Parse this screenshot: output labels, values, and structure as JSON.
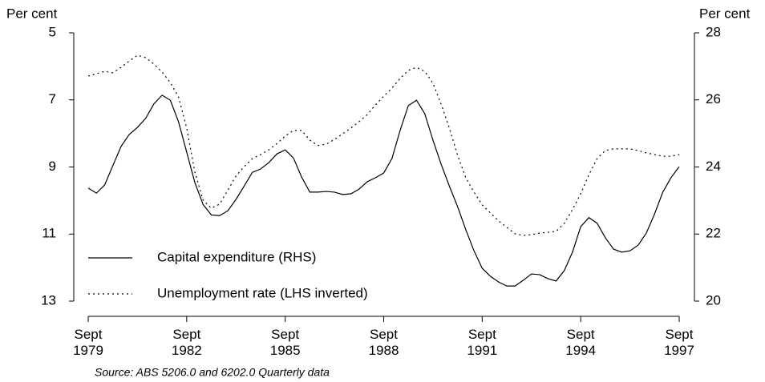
{
  "chart_data": {
    "type": "line",
    "ylabel": "Per cent",
    "y2label": "Per cent",
    "source": "Source: ABS 5206.0 and 6202.0 Quarterly data",
    "categories": [
      "Sept 1979",
      null,
      null,
      null,
      null,
      null,
      null,
      null,
      null,
      null,
      null,
      null,
      "Sept 1982",
      null,
      null,
      null,
      null,
      null,
      null,
      null,
      null,
      null,
      null,
      null,
      "Sept 1985",
      null,
      null,
      null,
      null,
      null,
      null,
      null,
      null,
      null,
      null,
      null,
      "Sept 1988",
      null,
      null,
      null,
      null,
      null,
      null,
      null,
      null,
      null,
      null,
      null,
      "Sept 1991",
      null,
      null,
      null,
      null,
      null,
      null,
      null,
      null,
      null,
      null,
      null,
      "Sept 1994",
      null,
      null,
      null,
      null,
      null,
      null,
      null,
      null,
      null,
      null,
      null,
      "Sept 1997"
    ],
    "ylim": [
      5,
      13
    ],
    "yinverted": true,
    "yticks": [
      5,
      7,
      9,
      11,
      13
    ],
    "y2lim": [
      20,
      28
    ],
    "y2ticks": [
      20,
      22,
      24,
      26,
      28
    ],
    "series": [
      {
        "name": "Capital expenditure (RHS)",
        "color": "#000000",
        "style": "solid",
        "axis": "y2",
        "values": [
          23.37,
          23.22,
          23.46,
          24.04,
          24.61,
          24.97,
          25.18,
          25.45,
          25.88,
          26.14,
          25.99,
          25.35,
          24.44,
          23.53,
          22.88,
          22.57,
          22.55,
          22.69,
          23.03,
          23.43,
          23.84,
          23.94,
          24.13,
          24.39,
          24.51,
          24.27,
          23.7,
          23.25,
          23.25,
          23.27,
          23.25,
          23.18,
          23.2,
          23.34,
          23.56,
          23.68,
          23.82,
          24.25,
          25.09,
          25.83,
          25.99,
          25.59,
          24.8,
          24.08,
          23.43,
          22.82,
          22.13,
          21.5,
          20.98,
          20.74,
          20.57,
          20.45,
          20.45,
          20.62,
          20.81,
          20.79,
          20.67,
          20.6,
          20.91,
          21.46,
          22.22,
          22.49,
          22.32,
          21.89,
          21.55,
          21.46,
          21.5,
          21.67,
          22.03,
          22.6,
          23.25,
          23.68,
          24.01
        ]
      },
      {
        "name": "Unemployment rate (LHS inverted)",
        "color": "#000000",
        "style": "dotted",
        "axis": "y",
        "values": [
          6.29,
          6.22,
          6.15,
          6.19,
          6.03,
          5.84,
          5.67,
          5.74,
          5.93,
          6.17,
          6.48,
          6.91,
          7.84,
          9.16,
          9.99,
          10.23,
          10.11,
          9.7,
          9.27,
          8.99,
          8.75,
          8.63,
          8.49,
          8.3,
          8.08,
          7.91,
          7.91,
          8.2,
          8.36,
          8.32,
          8.18,
          8.01,
          7.84,
          7.65,
          7.44,
          7.15,
          6.89,
          6.65,
          6.36,
          6.12,
          6.03,
          6.15,
          6.5,
          7.13,
          7.84,
          8.65,
          9.32,
          9.75,
          10.13,
          10.37,
          10.61,
          10.8,
          10.99,
          11.04,
          11.02,
          10.97,
          10.95,
          10.92,
          10.68,
          10.27,
          9.8,
          9.23,
          8.75,
          8.51,
          8.46,
          8.46,
          8.46,
          8.51,
          8.58,
          8.63,
          8.68,
          8.68,
          8.63
        ]
      }
    ]
  }
}
